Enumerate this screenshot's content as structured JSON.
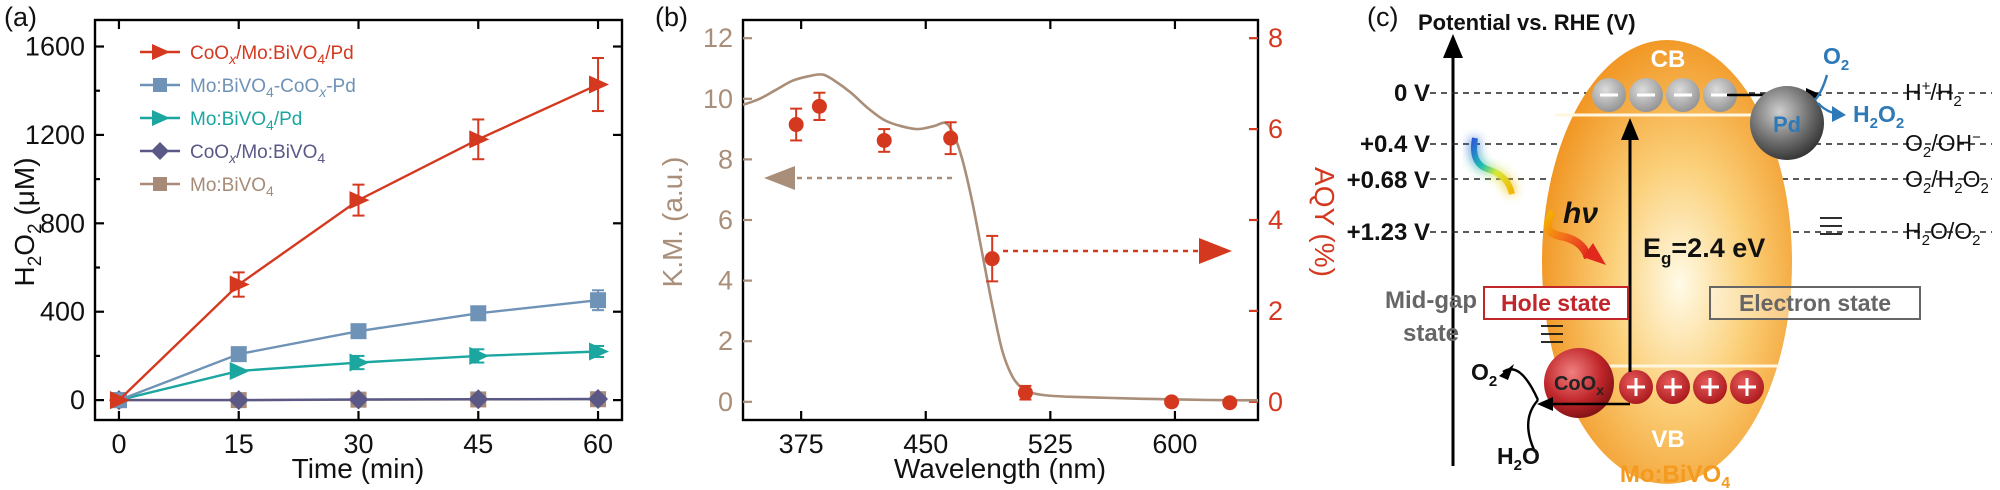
{
  "chart_data": [
    {
      "id": "a",
      "panel_label": "(a)",
      "type": "line",
      "xlabel": "Time (min)",
      "ylabel": "H2O2 (μM)",
      "ylabel_main": "H",
      "ylabel_sub": "2",
      "ylabel_mid": "O",
      "ylabel_sub2": "2",
      "ylabel_rest": " (μM)",
      "x": [
        0,
        15,
        30,
        45,
        60
      ],
      "xlim": [
        -3,
        63
      ],
      "ylim": [
        -90,
        1720
      ],
      "xticks": [
        0,
        15,
        30,
        45,
        60
      ],
      "yticks": [
        0,
        400,
        800,
        1200,
        1600
      ],
      "series": [
        {
          "name": "CoOx/Mo:BiVO4/Pd",
          "color": "#d4391f",
          "marker": "tri-right",
          "values": [
            0,
            523,
            905,
            1180,
            1428
          ],
          "errors": [
            0,
            55,
            70,
            90,
            120
          ]
        },
        {
          "name": "Mo:BiVO4-CoOx-Pd",
          "color": "#6f93b6",
          "marker": "square",
          "values": [
            0,
            208,
            312,
            393,
            452
          ],
          "errors": [
            0,
            0,
            0,
            0,
            45
          ]
        },
        {
          "name": "Mo:BiVO4/Pd",
          "color": "#1ba7a0",
          "marker": "tri-right",
          "values": [
            0,
            132,
            170,
            200,
            220
          ],
          "errors": [
            0,
            0,
            30,
            30,
            25
          ]
        },
        {
          "name": "CoOx/Mo:BiVO4",
          "color": "#5a5886",
          "marker": "diamond",
          "values": [
            0,
            0,
            3,
            4,
            5
          ],
          "errors": [
            0,
            0,
            0,
            0,
            0
          ]
        },
        {
          "name": "Mo:BiVO4",
          "color": "#a78b78",
          "marker": "square",
          "values": [
            0,
            0,
            2,
            3,
            4
          ],
          "errors": [
            0,
            0,
            0,
            0,
            0
          ]
        }
      ],
      "legend": {
        "placement": "top-left",
        "entries": [
          {
            "pre": "CoO",
            "sub1": "x",
            "mid": "/Mo:BiVO",
            "sub2": "4",
            "post": "/Pd"
          },
          {
            "pre": "Mo:BiVO",
            "sub1": "4",
            "mid": "-CoO",
            "sub2": "x",
            "post": "-Pd"
          },
          {
            "pre": "Mo:BiVO",
            "sub1": "4",
            "mid": "/Pd",
            "sub2": "",
            "post": ""
          },
          {
            "pre": "CoO",
            "sub1": "x",
            "mid": "/Mo:BiVO",
            "sub2": "4",
            "post": ""
          },
          {
            "pre": "Mo:BiVO",
            "sub1": "4",
            "mid": "",
            "sub2": "",
            "post": ""
          }
        ]
      }
    },
    {
      "id": "b",
      "panel_label": "(b)",
      "type": "line",
      "xlabel": "Wavelength (nm)",
      "ylabel": "K.M. (a.u.)",
      "ylabel_right": "AQY (%)",
      "xlim": [
        340,
        650
      ],
      "xticks": [
        375,
        450,
        525,
        600
      ],
      "ylim": [
        -0.6,
        12.6
      ],
      "yticks": [
        0,
        2,
        4,
        6,
        8,
        10,
        12
      ],
      "ylim_right": [
        -0.4,
        8.4
      ],
      "yticks_right": [
        0,
        2,
        4,
        6,
        8
      ],
      "left_color": "#a98e79",
      "right_color": "#d4391f",
      "km_curve": {
        "x": [
          340,
          350,
          360,
          370,
          380,
          388,
          395,
          405,
          415,
          425,
          435,
          445,
          455,
          462,
          467,
          472,
          478,
          484,
          490,
          496,
          502,
          508,
          515,
          525,
          540,
          560,
          580,
          600,
          620,
          650
        ],
        "y": [
          9.8,
          10.0,
          10.3,
          10.6,
          10.75,
          10.8,
          10.6,
          10.2,
          9.7,
          9.3,
          9.1,
          9.0,
          9.1,
          9.2,
          8.8,
          8.0,
          6.6,
          4.9,
          3.2,
          1.7,
          0.85,
          0.45,
          0.28,
          0.2,
          0.16,
          0.13,
          0.1,
          0.08,
          0.06,
          0.05
        ]
      },
      "aqy": {
        "x": [
          372,
          386,
          425,
          465,
          490,
          510,
          598,
          633
        ],
        "y": [
          6.1,
          6.5,
          5.75,
          5.8,
          3.15,
          0.2,
          0.0,
          -0.02
        ],
        "errors": [
          0.35,
          0.3,
          0.25,
          0.35,
          0.5,
          0.15,
          0.05,
          0.05
        ]
      },
      "arrows": {
        "left_arrow": "K.M.",
        "right_arrow": "AQY"
      }
    }
  ],
  "diagram_c": {
    "panel_label": "(c)",
    "title": "Potential vs. RHE (V)",
    "potentials": [
      "0 V",
      "+0.4 V",
      "+0.68 V",
      "+1.23 V"
    ],
    "redox": [
      {
        "pre": "H",
        "sup": "+",
        "mid": "/H",
        "sub": "2",
        "post": ""
      },
      {
        "pre": "O",
        "sub0": "2",
        "mid": "/OH",
        "sup2": "−",
        "post": ""
      },
      {
        "pre": "O",
        "sub0": "2",
        "mid": "/H",
        "sub": "2",
        "post": "O",
        "sub3": "2"
      },
      {
        "pre": "H",
        "sub0": "2",
        "mid": "O/O",
        "sub": "2"
      }
    ],
    "cb": "CB",
    "vb": "VB",
    "material": "Mo:BiVO",
    "material_sub": "4",
    "pd": "Pd",
    "coox": "CoO",
    "coox_sub": "x",
    "o2_top": "O",
    "o2_top_sub": "2",
    "h2o2_main": "H",
    "h2o2_sub1": "2",
    "h2o2_mid": "O",
    "h2o2_sub2": "2",
    "hv": "hν",
    "eg_pre": "E",
    "eg_sub": "g",
    "eg_post": "=2.4 eV",
    "hole_state": "Hole state",
    "electron_state": "Electron state",
    "mid_gap_1": "Mid-gap",
    "mid_gap_2": "state",
    "o2_bottom": "O",
    "o2_bottom_sub": "2",
    "h2o_pre": "H",
    "h2o_sub": "2",
    "h2o_post": "O",
    "colors": {
      "orange": "#f39a1f",
      "pd": "#555555",
      "coox": "#c0262a",
      "blue": "#2e7ab8",
      "hole": "#c0262a",
      "electron": "#666666"
    }
  }
}
